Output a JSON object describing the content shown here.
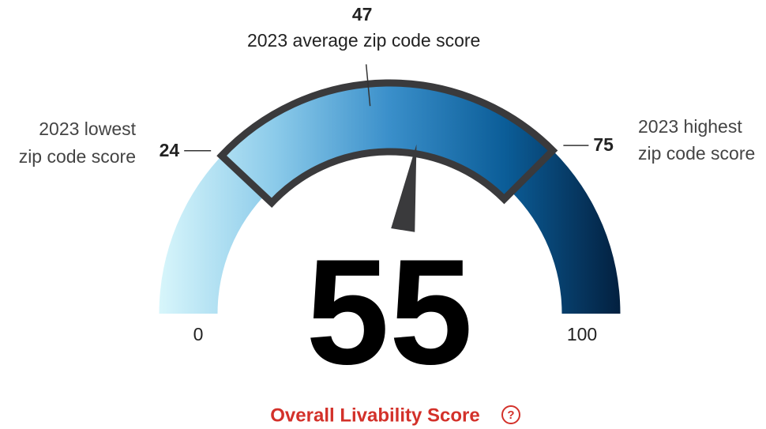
{
  "chart_data": {
    "type": "gauge",
    "value": 55,
    "range": [
      0,
      100
    ],
    "markers": [
      {
        "label": [
          "2023 lowest",
          "zip code score"
        ],
        "value": 24
      },
      {
        "label": [
          "2023 average zip code score"
        ],
        "value": 47
      },
      {
        "label": [
          "2023 highest",
          "zip code score"
        ],
        "value": 75
      }
    ],
    "title": "Overall Livability Score",
    "colors": [
      "#d8f6fb",
      "#8ccbea",
      "#3a8fca",
      "#0b5d98",
      "#03203f"
    ],
    "title_color": "#d3312a"
  }
}
